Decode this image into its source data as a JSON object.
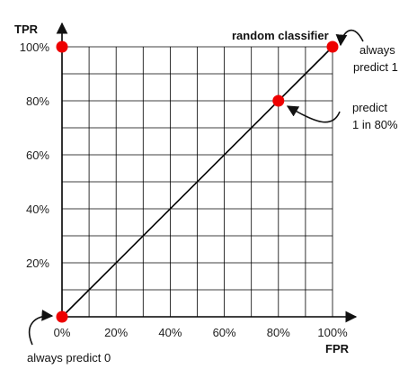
{
  "chart_data": {
    "type": "scatter",
    "xlabel": "FPR",
    "ylabel": "TPR",
    "xlim": [
      0,
      100
    ],
    "ylim": [
      0,
      100
    ],
    "grid": true,
    "x_ticks": [
      0,
      20,
      40,
      60,
      80,
      100
    ],
    "y_ticks": [
      20,
      40,
      60,
      80,
      100
    ],
    "x_tick_labels": [
      "0%",
      "20%",
      "40%",
      "60%",
      "80%",
      "100%"
    ],
    "y_tick_labels": [
      "20%",
      "40%",
      "60%",
      "80%",
      "100%"
    ],
    "line": {
      "name": "random classifier",
      "x": [
        0,
        100
      ],
      "y": [
        0,
        100
      ],
      "color": "#000000"
    },
    "points": [
      {
        "x": 0,
        "y": 0,
        "color": "#ee0000"
      },
      {
        "x": 0,
        "y": 100,
        "color": "#ee0000"
      },
      {
        "x": 80,
        "y": 80,
        "color": "#ee0000"
      },
      {
        "x": 100,
        "y": 100,
        "color": "#ee0000"
      }
    ],
    "annotations": [
      {
        "lines": [
          "always",
          "predict 1"
        ],
        "x": 100,
        "y": 100
      },
      {
        "lines": [
          "predict",
          "1 in 80%"
        ],
        "x": 80,
        "y": 80
      },
      {
        "lines": [
          "always predict 0"
        ],
        "x": 0,
        "y": 0
      }
    ]
  }
}
